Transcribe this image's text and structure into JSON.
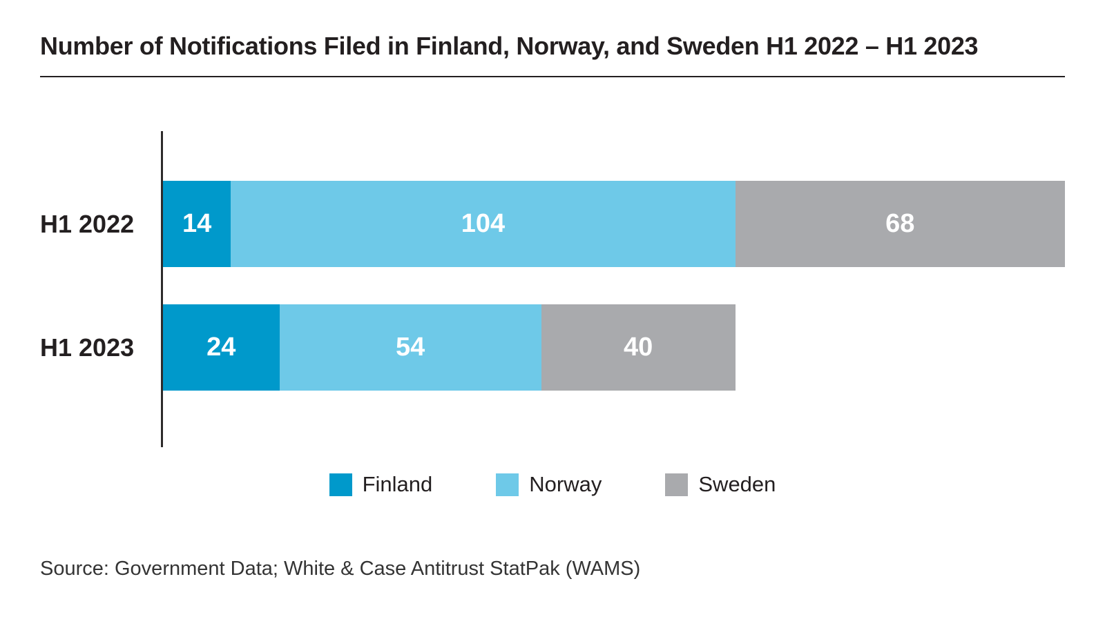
{
  "title": "Number of Notifications Filed in Finland, Norway, and Sweden H1 2022 – H1 2023",
  "source_note": "Source: Government Data; White & Case Antitrust StatPak (WAMS)",
  "colors": {
    "finland_blue": "#0099cb",
    "norway_light_blue": "#6ec9e8",
    "sweden_gray": "#a9aaad",
    "text_dark": "#231f20",
    "value_label_white": "#ffffff"
  },
  "legend": {
    "items": [
      {
        "label": "Finland",
        "color": "#0099cb"
      },
      {
        "label": "Norway",
        "color": "#6ec9e8"
      },
      {
        "label": "Sweden",
        "color": "#a9aaad"
      }
    ]
  },
  "chart_data": {
    "type": "bar",
    "orientation": "horizontal",
    "stacked": true,
    "title": "Number of Notifications Filed in Finland, Norway, and Sweden H1 2022 – H1 2023",
    "categories": [
      "H1 2022",
      "H1 2023"
    ],
    "series": [
      {
        "name": "Finland",
        "color": "#0099cb",
        "values": [
          14,
          24
        ]
      },
      {
        "name": "Norway",
        "color": "#6ec9e8",
        "values": [
          104,
          54
        ]
      },
      {
        "name": "Sweden",
        "color": "#a9aaad",
        "values": [
          68,
          40
        ]
      }
    ],
    "totals": [
      186,
      118
    ],
    "axis_range": [
      0,
      186
    ],
    "value_labels_shown": true,
    "gridlines": false,
    "legend_position": "bottom"
  }
}
